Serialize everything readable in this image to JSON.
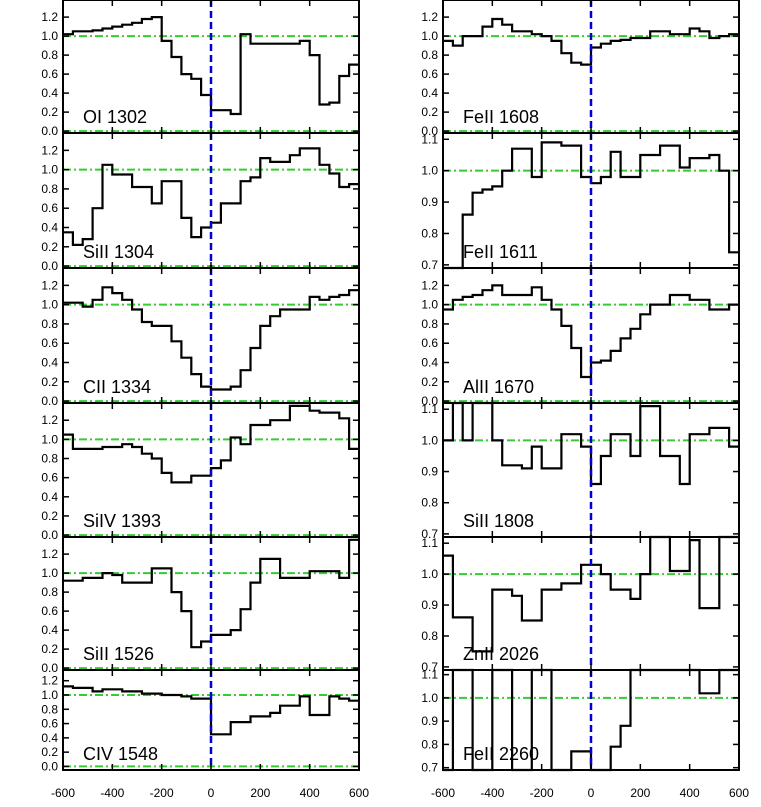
{
  "chart_data": {
    "type": "line",
    "step": true,
    "x_range": [
      -600,
      600
    ],
    "x_ticks": [
      -600,
      -400,
      -200,
      0,
      200,
      400,
      600
    ],
    "x_tick_labels": [
      "-600",
      "-400",
      "-200",
      "0",
      "200",
      "400",
      "600"
    ],
    "velocity_marker": 0,
    "reference_lines": [
      0.0,
      1.0
    ],
    "colors": {
      "spectrum": "#000000",
      "velocity_marker": "#0000cc",
      "reference_lines": "#33cc33",
      "axes": "#000000"
    },
    "panels": [
      {
        "column": 0,
        "row": 0,
        "label": "OI 1302",
        "ylim": [
          -0.02,
          1.38
        ],
        "y_ticks": [
          0.0,
          0.2,
          0.4,
          0.6,
          0.8,
          1.0,
          1.2
        ],
        "y_tick_labels": [
          "0.0",
          "0.2",
          "0.4",
          "0.6",
          "0.8",
          "1.0",
          "1.2"
        ],
        "bin_edges": [
          -600,
          -560,
          -520,
          -480,
          -440,
          -400,
          -360,
          -320,
          -280,
          -240,
          -200,
          -160,
          -120,
          -80,
          -40,
          0,
          40,
          80,
          120,
          160,
          200,
          240,
          280,
          320,
          360,
          400,
          440,
          480,
          520,
          560,
          600
        ],
        "values": [
          1.02,
          1.05,
          1.05,
          1.06,
          1.08,
          1.1,
          1.12,
          1.14,
          1.18,
          1.2,
          0.95,
          0.78,
          0.6,
          0.55,
          0.38,
          0.22,
          0.22,
          0.18,
          1.02,
          0.92,
          0.92,
          0.92,
          0.92,
          0.92,
          0.95,
          0.8,
          0.28,
          0.3,
          0.58,
          0.7
        ]
      },
      {
        "column": 0,
        "row": 1,
        "label": "SiII 1304",
        "ylim": [
          -0.02,
          1.38
        ],
        "y_ticks": [
          0.0,
          0.2,
          0.4,
          0.6,
          0.8,
          1.0,
          1.2
        ],
        "y_tick_labels": [
          "0.0",
          "0.2",
          "0.4",
          "0.6",
          "0.8",
          "1.0",
          "1.2"
        ],
        "bin_edges": [
          -600,
          -560,
          -520,
          -480,
          -440,
          -400,
          -360,
          -320,
          -280,
          -240,
          -200,
          -160,
          -120,
          -80,
          -40,
          0,
          40,
          80,
          120,
          160,
          200,
          240,
          280,
          320,
          360,
          400,
          440,
          480,
          520,
          560,
          600
        ],
        "values": [
          0.35,
          0.22,
          0.28,
          0.6,
          1.05,
          0.95,
          0.95,
          0.82,
          0.82,
          0.65,
          0.88,
          0.88,
          0.5,
          0.3,
          0.4,
          0.45,
          0.65,
          0.65,
          0.88,
          0.92,
          1.12,
          1.08,
          1.08,
          1.15,
          1.22,
          1.22,
          1.05,
          0.96,
          0.82,
          0.85
        ]
      },
      {
        "column": 0,
        "row": 2,
        "label": "CII 1334",
        "ylim": [
          -0.02,
          1.38
        ],
        "y_ticks": [
          0.0,
          0.2,
          0.4,
          0.6,
          0.8,
          1.0,
          1.2
        ],
        "y_tick_labels": [
          "0.0",
          "0.2",
          "0.4",
          "0.6",
          "0.8",
          "1.0",
          "1.2"
        ],
        "bin_edges": [
          -600,
          -560,
          -520,
          -480,
          -440,
          -400,
          -360,
          -320,
          -280,
          -240,
          -200,
          -160,
          -120,
          -80,
          -40,
          0,
          40,
          80,
          120,
          160,
          200,
          240,
          280,
          320,
          360,
          400,
          440,
          480,
          520,
          560,
          600
        ],
        "values": [
          1.02,
          1.02,
          0.98,
          1.05,
          1.18,
          1.12,
          1.05,
          0.95,
          0.82,
          0.78,
          0.78,
          0.62,
          0.45,
          0.28,
          0.15,
          0.12,
          0.12,
          0.15,
          0.32,
          0.55,
          0.78,
          0.88,
          0.95,
          0.95,
          0.95,
          1.08,
          1.05,
          1.08,
          1.1,
          1.15
        ]
      },
      {
        "column": 0,
        "row": 3,
        "label": "SiIV 1393",
        "ylim": [
          -0.02,
          1.38
        ],
        "y_ticks": [
          0.0,
          0.2,
          0.4,
          0.6,
          0.8,
          1.0,
          1.2
        ],
        "y_tick_labels": [
          "0.0",
          "0.2",
          "0.4",
          "0.6",
          "0.8",
          "1.0",
          "1.2"
        ],
        "bin_edges": [
          -600,
          -560,
          -520,
          -480,
          -440,
          -400,
          -360,
          -320,
          -280,
          -240,
          -200,
          -160,
          -120,
          -80,
          -40,
          0,
          40,
          80,
          120,
          160,
          200,
          240,
          280,
          320,
          360,
          400,
          440,
          480,
          520,
          560,
          600
        ],
        "values": [
          1.05,
          0.9,
          0.9,
          0.9,
          0.92,
          0.92,
          0.95,
          0.92,
          0.85,
          0.8,
          0.65,
          0.55,
          0.55,
          0.62,
          0.62,
          0.7,
          0.78,
          1.02,
          0.95,
          1.15,
          1.15,
          1.2,
          1.2,
          1.35,
          1.35,
          1.3,
          1.28,
          1.28,
          1.22,
          0.9
        ]
      },
      {
        "column": 0,
        "row": 4,
        "label": "SiII 1526",
        "ylim": [
          -0.02,
          1.38
        ],
        "y_ticks": [
          0.0,
          0.2,
          0.4,
          0.6,
          0.8,
          1.0,
          1.2
        ],
        "y_tick_labels": [
          "0.0",
          "0.2",
          "0.4",
          "0.6",
          "0.8",
          "1.0",
          "1.2"
        ],
        "bin_edges": [
          -600,
          -560,
          -520,
          -480,
          -440,
          -400,
          -360,
          -320,
          -280,
          -240,
          -200,
          -160,
          -120,
          -80,
          -40,
          0,
          40,
          80,
          120,
          160,
          200,
          240,
          280,
          320,
          360,
          400,
          440,
          480,
          520,
          560,
          600
        ],
        "values": [
          0.92,
          0.92,
          0.95,
          0.95,
          1.0,
          0.98,
          0.9,
          0.9,
          0.9,
          1.05,
          1.05,
          0.8,
          0.6,
          0.22,
          0.28,
          0.35,
          0.35,
          0.4,
          0.62,
          0.9,
          1.15,
          1.15,
          0.95,
          0.95,
          0.95,
          1.02,
          1.02,
          1.02,
          0.95,
          1.35
        ]
      },
      {
        "column": 0,
        "row": 5,
        "label": "CIV 1548",
        "ylim": [
          -0.05,
          1.35
        ],
        "y_ticks": [
          0.0,
          0.2,
          0.4,
          0.6,
          0.8,
          1.0,
          1.2
        ],
        "y_tick_labels": [
          "0.0",
          "0.2",
          "0.4",
          "0.6",
          "0.8",
          "1.0",
          "1.2"
        ],
        "bin_edges": [
          -600,
          -560,
          -520,
          -480,
          -440,
          -400,
          -360,
          -320,
          -280,
          -240,
          -200,
          -160,
          -120,
          -80,
          -40,
          0,
          40,
          80,
          120,
          160,
          200,
          240,
          280,
          320,
          360,
          400,
          440,
          480,
          520,
          560,
          600
        ],
        "values": [
          1.12,
          1.1,
          1.1,
          1.05,
          1.08,
          1.08,
          1.05,
          1.05,
          1.02,
          1.02,
          1.0,
          1.0,
          0.98,
          0.95,
          0.95,
          0.45,
          0.45,
          0.62,
          0.62,
          0.7,
          0.7,
          0.75,
          0.85,
          0.85,
          0.98,
          0.72,
          0.72,
          0.98,
          0.95,
          0.92
        ]
      },
      {
        "column": 1,
        "row": 0,
        "label": "FeII 1608",
        "ylim": [
          -0.02,
          1.38
        ],
        "y_ticks": [
          0.0,
          0.2,
          0.4,
          0.6,
          0.8,
          1.0,
          1.2
        ],
        "y_tick_labels": [
          "0.0",
          "0.2",
          "0.4",
          "0.6",
          "0.8",
          "1.0",
          "1.2"
        ],
        "bin_edges": [
          -600,
          -560,
          -520,
          -480,
          -440,
          -400,
          -360,
          -320,
          -280,
          -240,
          -200,
          -160,
          -120,
          -80,
          -40,
          0,
          40,
          80,
          120,
          160,
          200,
          240,
          280,
          320,
          360,
          400,
          440,
          480,
          520,
          560,
          600
        ],
        "values": [
          0.95,
          0.9,
          1.0,
          1.0,
          1.1,
          1.18,
          1.12,
          1.05,
          1.05,
          1.02,
          1.0,
          0.95,
          0.82,
          0.72,
          0.7,
          0.88,
          0.92,
          0.95,
          0.96,
          0.98,
          0.98,
          1.05,
          1.05,
          1.02,
          1.02,
          1.08,
          1.05,
          0.98,
          1.0,
          1.02
        ]
      },
      {
        "column": 1,
        "row": 1,
        "label": "FeII 1611",
        "ylim": [
          0.69,
          1.12
        ],
        "y_ticks": [
          0.7,
          0.8,
          0.9,
          1.0,
          1.1
        ],
        "y_tick_labels": [
          "0.7",
          "0.8",
          "0.9",
          "1.0",
          "1.1"
        ],
        "bin_edges": [
          -600,
          -560,
          -520,
          -480,
          -440,
          -400,
          -360,
          -320,
          -280,
          -240,
          -200,
          -160,
          -120,
          -80,
          -40,
          0,
          40,
          80,
          120,
          160,
          200,
          240,
          280,
          320,
          360,
          400,
          440,
          480,
          520,
          560,
          600
        ],
        "values": [
          0.68,
          0.68,
          0.86,
          0.93,
          0.94,
          0.95,
          1.0,
          1.07,
          1.07,
          0.98,
          1.09,
          1.09,
          1.08,
          1.08,
          0.98,
          0.96,
          0.98,
          1.06,
          0.98,
          0.98,
          1.05,
          1.05,
          1.08,
          1.08,
          1.01,
          1.04,
          1.04,
          1.05,
          1.0,
          0.74
        ]
      },
      {
        "column": 1,
        "row": 2,
        "label": "AlII 1670",
        "ylim": [
          -0.02,
          1.38
        ],
        "y_ticks": [
          0.0,
          0.2,
          0.4,
          0.6,
          0.8,
          1.0,
          1.2
        ],
        "y_tick_labels": [
          "0.0",
          "0.2",
          "0.4",
          "0.6",
          "0.8",
          "1.0",
          "1.2"
        ],
        "bin_edges": [
          -600,
          -560,
          -520,
          -480,
          -440,
          -400,
          -360,
          -320,
          -280,
          -240,
          -200,
          -160,
          -120,
          -80,
          -40,
          0,
          40,
          80,
          120,
          160,
          200,
          240,
          280,
          320,
          360,
          400,
          440,
          480,
          520,
          560,
          600
        ],
        "values": [
          0.95,
          1.05,
          1.08,
          1.1,
          1.15,
          1.2,
          1.1,
          1.1,
          1.1,
          1.18,
          1.05,
          0.95,
          0.78,
          0.55,
          0.25,
          0.4,
          0.42,
          0.52,
          0.65,
          0.75,
          0.9,
          1.0,
          1.0,
          1.1,
          1.1,
          1.05,
          1.05,
          0.95,
          0.95,
          1.0
        ]
      },
      {
        "column": 1,
        "row": 3,
        "label": "SiII 1808",
        "ylim": [
          0.69,
          1.12
        ],
        "y_ticks": [
          0.7,
          0.8,
          0.9,
          1.0,
          1.1
        ],
        "y_tick_labels": [
          "0.7",
          "0.8",
          "0.9",
          "1.0",
          "1.1"
        ],
        "bin_edges": [
          -600,
          -560,
          -520,
          -480,
          -440,
          -400,
          -360,
          -320,
          -280,
          -240,
          -200,
          -160,
          -120,
          -80,
          -40,
          0,
          40,
          80,
          120,
          160,
          200,
          240,
          280,
          320,
          360,
          400,
          440,
          480,
          520,
          560,
          600
        ],
        "values": [
          1.0,
          1.12,
          1.0,
          1.12,
          1.12,
          1.0,
          0.92,
          0.92,
          0.91,
          0.98,
          0.91,
          0.91,
          1.02,
          1.02,
          0.98,
          0.86,
          0.95,
          1.02,
          1.02,
          0.95,
          1.11,
          1.11,
          0.95,
          0.95,
          0.86,
          1.02,
          1.02,
          1.04,
          1.04,
          0.98
        ]
      },
      {
        "column": 1,
        "row": 4,
        "label": "ZnII 2026",
        "ylim": [
          0.69,
          1.12
        ],
        "y_ticks": [
          0.7,
          0.8,
          0.9,
          1.0,
          1.1
        ],
        "y_tick_labels": [
          "0.7",
          "0.8",
          "0.9",
          "1.0",
          "1.1"
        ],
        "bin_edges": [
          -600,
          -560,
          -520,
          -480,
          -440,
          -400,
          -360,
          -320,
          -280,
          -240,
          -200,
          -160,
          -120,
          -80,
          -40,
          0,
          40,
          80,
          120,
          160,
          200,
          240,
          280,
          320,
          360,
          400,
          440,
          480,
          520,
          560,
          600
        ],
        "values": [
          1.06,
          0.86,
          0.86,
          0.75,
          0.75,
          0.95,
          0.95,
          0.93,
          0.85,
          0.85,
          0.95,
          0.95,
          0.97,
          0.97,
          1.03,
          1.03,
          1.0,
          0.95,
          0.95,
          0.92,
          1.0,
          1.12,
          1.12,
          1.01,
          1.01,
          1.11,
          0.89,
          0.89,
          1.12,
          1.12
        ]
      },
      {
        "column": 1,
        "row": 5,
        "label": "FeII 2260",
        "ylim": [
          0.69,
          1.12
        ],
        "y_ticks": [
          0.7,
          0.8,
          0.9,
          1.0,
          1.1
        ],
        "y_tick_labels": [
          "0.7",
          "0.8",
          "0.9",
          "1.0",
          "1.1"
        ],
        "bin_edges": [
          -600,
          -560,
          -520,
          -480,
          -440,
          -400,
          -360,
          -320,
          -280,
          -240,
          -200,
          -160,
          -120,
          -80,
          -40,
          0,
          40,
          80,
          120,
          160,
          200,
          240,
          280,
          320,
          360,
          400,
          440,
          480,
          520,
          560,
          600
        ],
        "values": [
          0.69,
          1.12,
          1.12,
          0.69,
          0.69,
          1.12,
          1.12,
          0.69,
          0.69,
          1.12,
          1.12,
          0.69,
          0.69,
          0.77,
          0.77,
          0.69,
          0.69,
          0.79,
          0.88,
          1.12,
          1.12,
          1.12,
          1.12,
          1.12,
          1.12,
          1.12,
          1.02,
          1.02,
          1.12,
          1.12
        ]
      }
    ]
  }
}
